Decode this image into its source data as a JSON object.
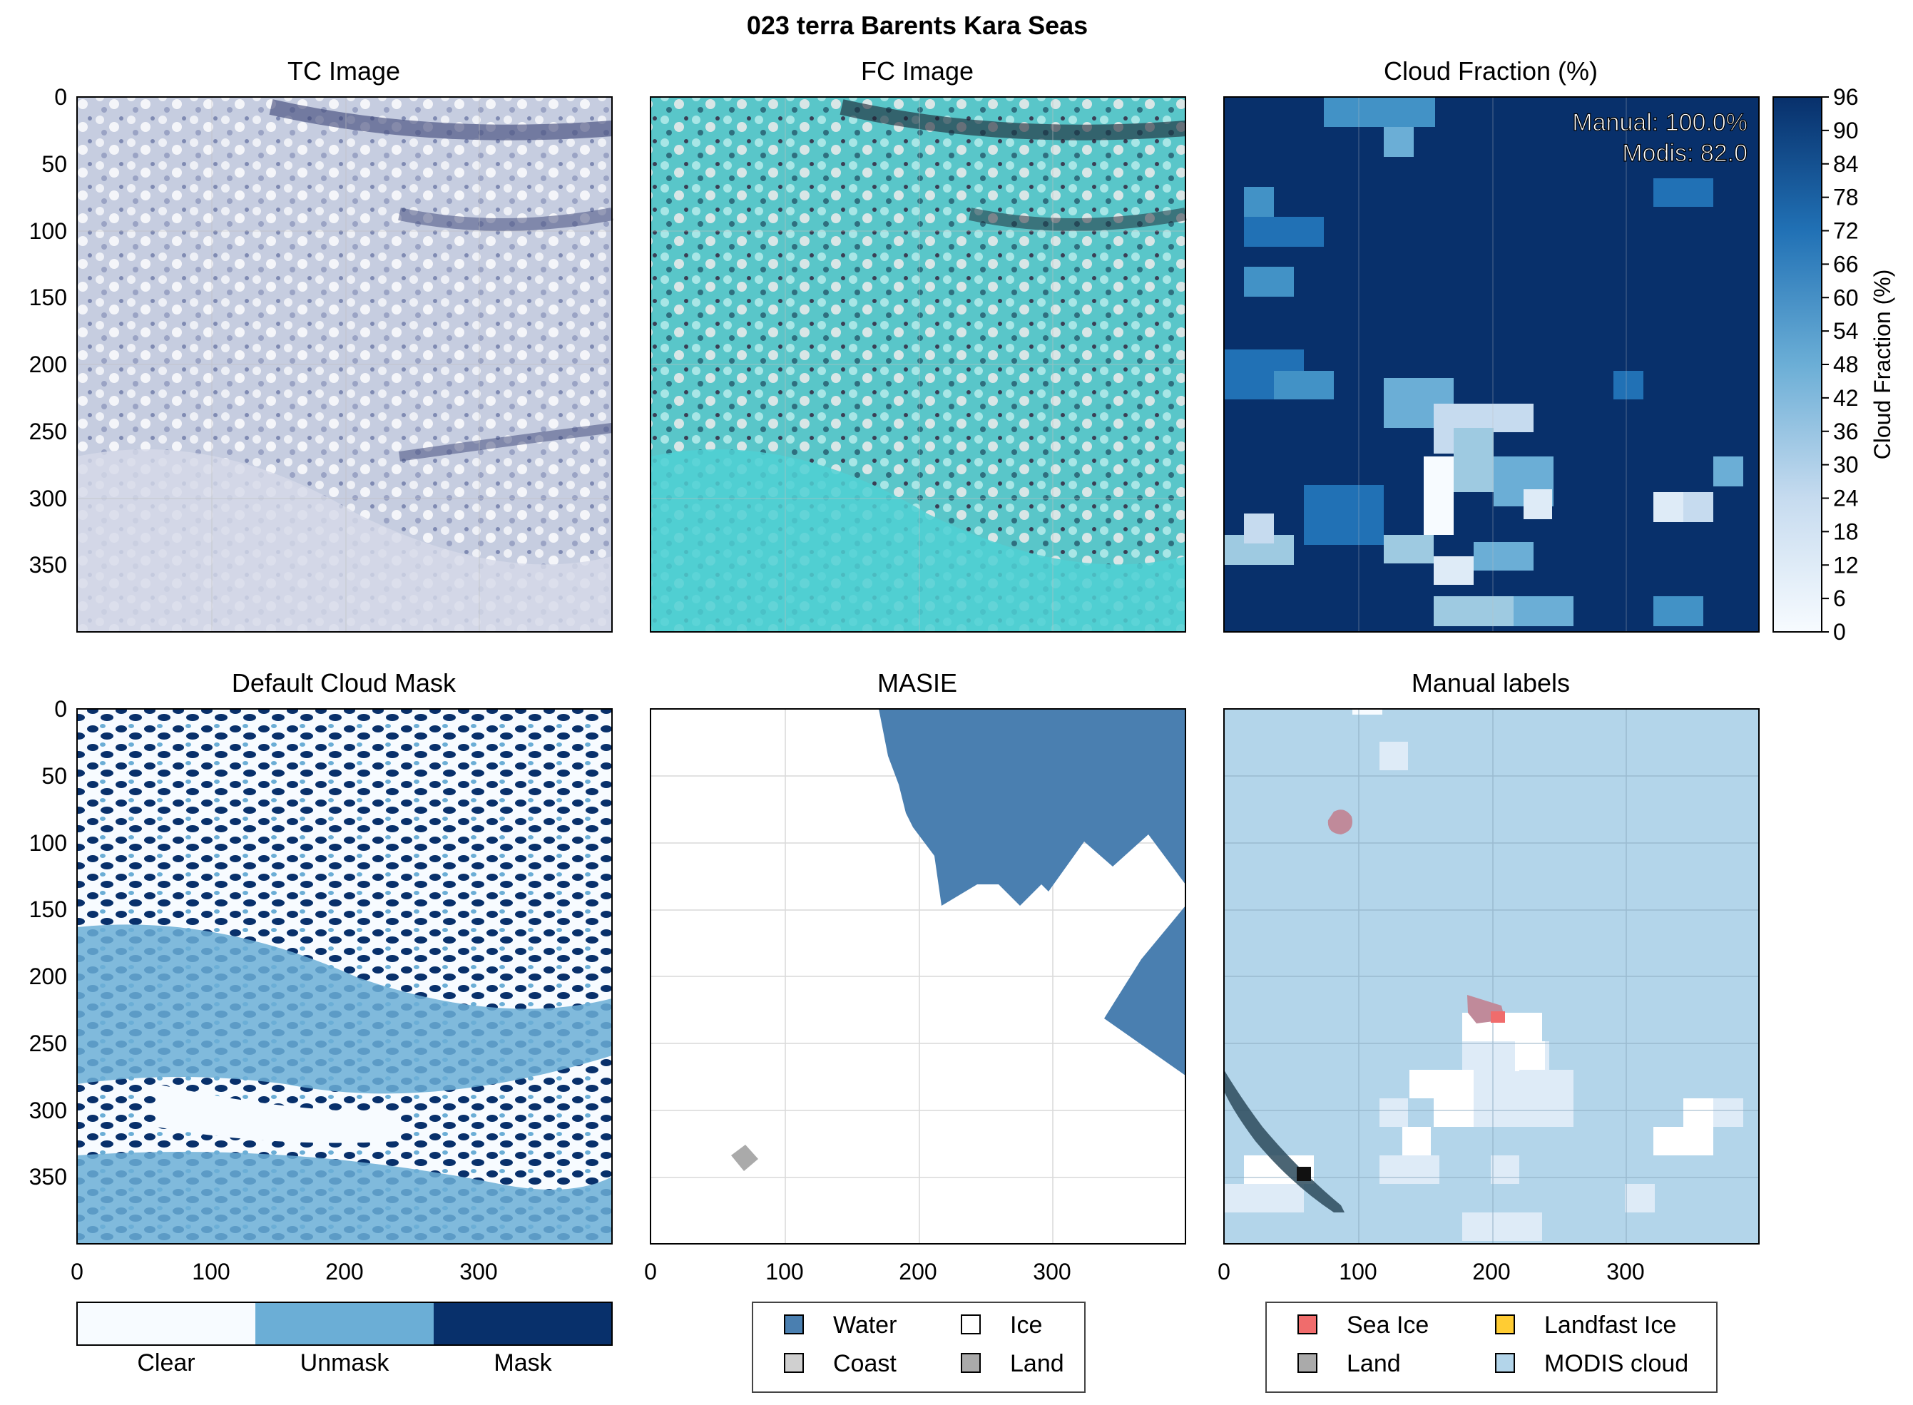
{
  "figure": {
    "title": "023 terra Barents Kara Seas"
  },
  "colors": {
    "dark_blue": "#08306b",
    "mid_blue": "#6baed6",
    "light_blue": "#f7fbff",
    "masie_water": "#4a7fb0",
    "masie_land": "#aaaaaa",
    "sea_ice": "#f06c6c",
    "landfast_ice": "#ffcc33",
    "land": "#aaaaaa",
    "modis_cloud": "#b3d5ea"
  },
  "chart_data": [
    {
      "type": "image",
      "title": "TC Image",
      "xlim": [
        0,
        400
      ],
      "ylim": [
        400,
        0
      ],
      "yticks": [
        "0",
        "50",
        "100",
        "150",
        "200",
        "250",
        "300",
        "350"
      ],
      "grid": true
    },
    {
      "type": "image",
      "title": "FC Image",
      "xlim": [
        0,
        400
      ],
      "ylim": [
        400,
        0
      ],
      "grid": true
    },
    {
      "type": "heatmap",
      "title": "Cloud Fraction (%)",
      "xlim": [
        0,
        400
      ],
      "ylim": [
        400,
        0
      ],
      "grid": true,
      "annotations": [
        "Manual: 100.0%",
        "Modis: 82.0"
      ],
      "colorbar": {
        "label": "Cloud Fraction (%)",
        "ticks": [
          "0",
          "6",
          "12",
          "18",
          "24",
          "30",
          "36",
          "42",
          "48",
          "54",
          "60",
          "66",
          "72",
          "78",
          "84",
          "90",
          "96"
        ],
        "range": [
          0,
          96
        ]
      }
    },
    {
      "type": "heatmap",
      "title": "Default Cloud Mask",
      "xlim": [
        0,
        400
      ],
      "ylim": [
        400,
        0
      ],
      "xticks": [
        "0",
        "100",
        "200",
        "300"
      ],
      "yticks": [
        "0",
        "50",
        "100",
        "150",
        "200",
        "250",
        "300",
        "350"
      ],
      "categories": [
        "Clear",
        "Unmask",
        "Mask"
      ]
    },
    {
      "type": "heatmap",
      "title": "MASIE",
      "xlim": [
        0,
        400
      ],
      "ylim": [
        400,
        0
      ],
      "xticks": [
        "0",
        "100",
        "200",
        "300"
      ],
      "grid": true,
      "legend": [
        {
          "label": "Water",
          "color": "#4a7fb0"
        },
        {
          "label": "Ice",
          "color": "#ffffff"
        },
        {
          "label": "Coast",
          "color": "#d0d0d0"
        },
        {
          "label": "Land",
          "color": "#aaaaaa"
        }
      ]
    },
    {
      "type": "heatmap",
      "title": "Manual labels",
      "xlim": [
        0,
        400
      ],
      "ylim": [
        400,
        0
      ],
      "xticks": [
        "0",
        "100",
        "200",
        "300"
      ],
      "grid": true,
      "legend": [
        {
          "label": "Sea Ice",
          "color": "#f06c6c"
        },
        {
          "label": "Landfast Ice",
          "color": "#ffcc33"
        },
        {
          "label": "Land",
          "color": "#aaaaaa"
        },
        {
          "label": "MODIS cloud",
          "color": "#b3d5ea"
        }
      ]
    }
  ]
}
